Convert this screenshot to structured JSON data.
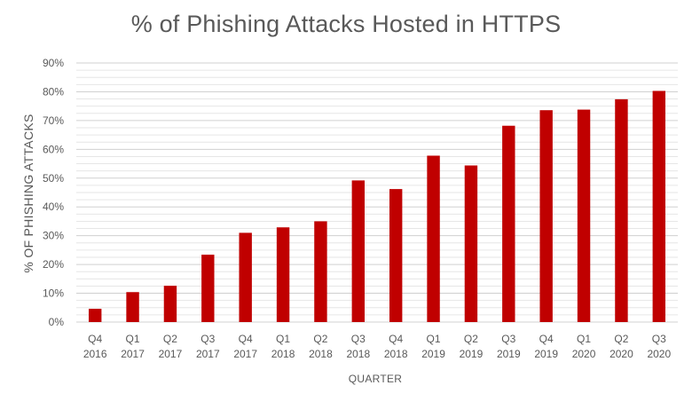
{
  "chart_data": {
    "type": "bar",
    "title": "% of Phishing Attacks Hosted in HTTPS",
    "xlabel": "QUARTER",
    "ylabel": "% OF PHISHING ATTACKS",
    "ylim": [
      0,
      90
    ],
    "yticks": [
      "0%",
      "10%",
      "20%",
      "30%",
      "40%",
      "50%",
      "60%",
      "70%",
      "80%",
      "90%"
    ],
    "grid": true,
    "bar_color": "#C00000",
    "categories": [
      [
        "Q4",
        "2016"
      ],
      [
        "Q1",
        "2017"
      ],
      [
        "Q2",
        "2017"
      ],
      [
        "Q3",
        "2017"
      ],
      [
        "Q4",
        "2017"
      ],
      [
        "Q1",
        "2018"
      ],
      [
        "Q2",
        "2018"
      ],
      [
        "Q3",
        "2018"
      ],
      [
        "Q4",
        "2018"
      ],
      [
        "Q1",
        "2019"
      ],
      [
        "Q2",
        "2019"
      ],
      [
        "Q3",
        "2019"
      ],
      [
        "Q4",
        "2019"
      ],
      [
        "Q1",
        "2020"
      ],
      [
        "Q2",
        "2020"
      ],
      [
        "Q3",
        "2020"
      ]
    ],
    "values": [
      4.6,
      10.4,
      12.6,
      23.4,
      31.0,
      32.9,
      35.0,
      49.2,
      46.2,
      57.8,
      54.4,
      68.2,
      73.6,
      73.8,
      77.4,
      80.3
    ]
  }
}
